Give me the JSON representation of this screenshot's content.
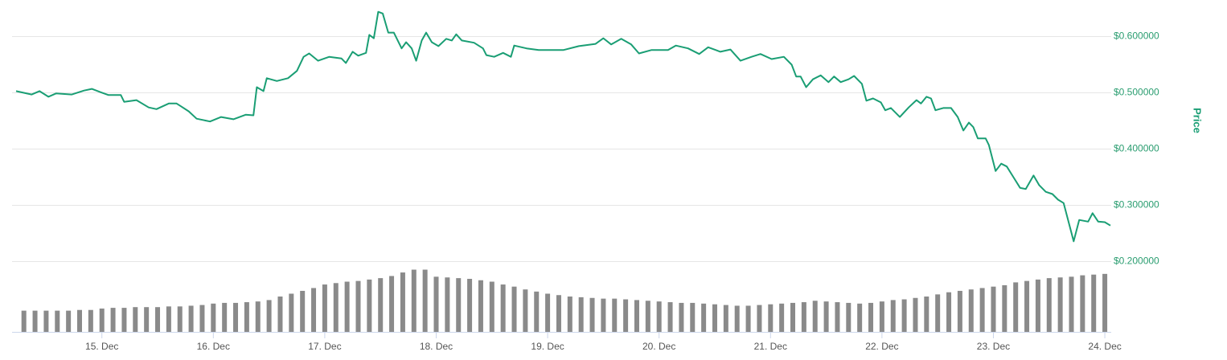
{
  "chart_data": {
    "type": "line",
    "y_axis_title": "Price",
    "xlim": [
      14.23,
      24.05
    ],
    "xticks": [
      {
        "value": 15,
        "label": "15. Dec"
      },
      {
        "value": 16,
        "label": "16. Dec"
      },
      {
        "value": 17,
        "label": "17. Dec"
      },
      {
        "value": 18,
        "label": "18. Dec"
      },
      {
        "value": 19,
        "label": "19. Dec"
      },
      {
        "value": 20,
        "label": "20. Dec"
      },
      {
        "value": 21,
        "label": "21. Dec"
      },
      {
        "value": 22,
        "label": "22. Dec"
      },
      {
        "value": 23,
        "label": "23. Dec"
      },
      {
        "value": 24,
        "label": "24. Dec"
      }
    ],
    "ylim": [
      0.075,
      0.665
    ],
    "yticks": [
      {
        "value": 0.2,
        "label": "$0.200000"
      },
      {
        "value": 0.3,
        "label": "$0.300000"
      },
      {
        "value": 0.4,
        "label": "$0.400000"
      },
      {
        "value": 0.5,
        "label": "$0.500000"
      },
      {
        "value": 0.6,
        "label": "$0.600000"
      }
    ],
    "grid": true,
    "x": [
      14.23,
      14.37,
      14.44,
      14.52,
      14.59,
      14.73,
      14.84,
      14.91,
      14.99,
      15.06,
      15.17,
      15.2,
      15.31,
      15.42,
      15.49,
      15.6,
      15.67,
      15.71,
      15.78,
      15.85,
      15.97,
      16.07,
      16.18,
      16.29,
      16.36,
      16.39,
      16.45,
      16.48,
      16.57,
      16.67,
      16.75,
      16.81,
      16.86,
      16.94,
      17.04,
      17.15,
      17.19,
      17.25,
      17.3,
      17.37,
      17.4,
      17.44,
      17.48,
      17.52,
      17.57,
      17.62,
      17.69,
      17.73,
      17.78,
      17.82,
      17.87,
      17.91,
      17.96,
      18.02,
      18.09,
      18.14,
      18.18,
      18.23,
      18.34,
      18.42,
      18.45,
      18.52,
      18.6,
      18.67,
      18.7,
      18.81,
      18.92,
      19.06,
      19.14,
      19.28,
      19.43,
      19.5,
      19.57,
      19.66,
      19.75,
      19.82,
      19.93,
      20.08,
      20.15,
      20.26,
      20.36,
      20.44,
      20.55,
      20.64,
      20.73,
      20.83,
      20.91,
      21.01,
      21.12,
      21.19,
      21.23,
      21.27,
      21.32,
      21.38,
      21.45,
      21.52,
      21.57,
      21.63,
      21.7,
      21.75,
      21.82,
      21.86,
      21.92,
      21.99,
      22.03,
      22.08,
      22.16,
      22.24,
      22.31,
      22.35,
      22.4,
      22.44,
      22.48,
      22.55,
      22.62,
      22.68,
      22.73,
      22.78,
      22.82,
      22.86,
      22.93,
      22.96,
      23.02,
      23.07,
      23.12,
      23.18,
      23.24,
      23.29,
      23.36,
      23.41,
      23.47,
      23.53,
      23.58,
      23.63,
      23.72,
      23.77,
      23.85,
      23.89,
      23.94,
      24.0,
      24.05
    ],
    "series": [
      {
        "name": "Price",
        "color": "#1a9e74",
        "values": [
          0.503,
          0.497,
          0.503,
          0.493,
          0.499,
          0.497,
          0.504,
          0.507,
          0.501,
          0.496,
          0.496,
          0.484,
          0.487,
          0.474,
          0.471,
          0.481,
          0.481,
          0.476,
          0.467,
          0.454,
          0.449,
          0.457,
          0.453,
          0.461,
          0.46,
          0.51,
          0.503,
          0.526,
          0.521,
          0.526,
          0.539,
          0.564,
          0.57,
          0.557,
          0.564,
          0.561,
          0.553,
          0.573,
          0.566,
          0.571,
          0.603,
          0.597,
          0.644,
          0.641,
          0.607,
          0.607,
          0.579,
          0.59,
          0.579,
          0.557,
          0.593,
          0.607,
          0.59,
          0.583,
          0.596,
          0.593,
          0.604,
          0.593,
          0.589,
          0.579,
          0.567,
          0.564,
          0.571,
          0.564,
          0.584,
          0.579,
          0.576,
          0.576,
          0.576,
          0.583,
          0.587,
          0.597,
          0.586,
          0.596,
          0.586,
          0.57,
          0.576,
          0.576,
          0.584,
          0.579,
          0.569,
          0.581,
          0.573,
          0.577,
          0.557,
          0.564,
          0.569,
          0.56,
          0.564,
          0.55,
          0.529,
          0.529,
          0.51,
          0.524,
          0.531,
          0.519,
          0.529,
          0.519,
          0.524,
          0.53,
          0.516,
          0.486,
          0.49,
          0.483,
          0.469,
          0.473,
          0.457,
          0.474,
          0.487,
          0.481,
          0.493,
          0.49,
          0.469,
          0.473,
          0.473,
          0.457,
          0.433,
          0.447,
          0.439,
          0.419,
          0.419,
          0.407,
          0.361,
          0.374,
          0.369,
          0.35,
          0.331,
          0.329,
          0.353,
          0.336,
          0.324,
          0.32,
          0.31,
          0.304,
          0.236,
          0.274,
          0.271,
          0.286,
          0.271,
          0.27,
          0.264
        ]
      }
    ],
    "volume": {
      "type": "bar",
      "color": "#8a8a8a",
      "y2lim": [
        0,
        100
      ],
      "x": [
        14.3,
        14.4,
        14.5,
        14.6,
        14.7,
        14.8,
        14.9,
        15.0,
        15.1,
        15.2,
        15.3,
        15.4,
        15.5,
        15.6,
        15.7,
        15.8,
        15.9,
        16.0,
        16.1,
        16.2,
        16.3,
        16.4,
        16.5,
        16.6,
        16.7,
        16.8,
        16.9,
        17.0,
        17.1,
        17.2,
        17.3,
        17.4,
        17.5,
        17.6,
        17.7,
        17.8,
        17.9,
        18.0,
        18.1,
        18.2,
        18.3,
        18.4,
        18.5,
        18.6,
        18.7,
        18.8,
        18.9,
        19.0,
        19.1,
        19.2,
        19.3,
        19.4,
        19.5,
        19.6,
        19.7,
        19.8,
        19.9,
        20.0,
        20.1,
        20.2,
        20.3,
        20.4,
        20.5,
        20.6,
        20.7,
        20.8,
        20.9,
        21.0,
        21.1,
        21.2,
        21.3,
        21.4,
        21.5,
        21.6,
        21.7,
        21.8,
        21.9,
        22.0,
        22.1,
        22.2,
        22.3,
        22.4,
        22.5,
        22.6,
        22.7,
        22.8,
        22.9,
        23.0,
        23.1,
        23.2,
        23.3,
        23.4,
        23.5,
        23.6,
        23.7,
        23.8,
        23.9,
        24.0
      ],
      "values": [
        30,
        30,
        30,
        30,
        30,
        31,
        31,
        33,
        34,
        34,
        35,
        35,
        35,
        36,
        36,
        37,
        38,
        40,
        41,
        41,
        42,
        43,
        45,
        50,
        54,
        58,
        62,
        67,
        69,
        71,
        72,
        74,
        76,
        79,
        84,
        88,
        88,
        78,
        77,
        76,
        75,
        73,
        71,
        67,
        64,
        60,
        57,
        54,
        52,
        50,
        49,
        48,
        47,
        47,
        46,
        45,
        44,
        43,
        42,
        41,
        41,
        40,
        39,
        38,
        37,
        37,
        38,
        39,
        40,
        41,
        42,
        44,
        43,
        42,
        41,
        40,
        41,
        43,
        45,
        46,
        48,
        50,
        53,
        56,
        58,
        60,
        62,
        64,
        66,
        70,
        72,
        74,
        76,
        77,
        78,
        80,
        81,
        82
      ]
    }
  }
}
